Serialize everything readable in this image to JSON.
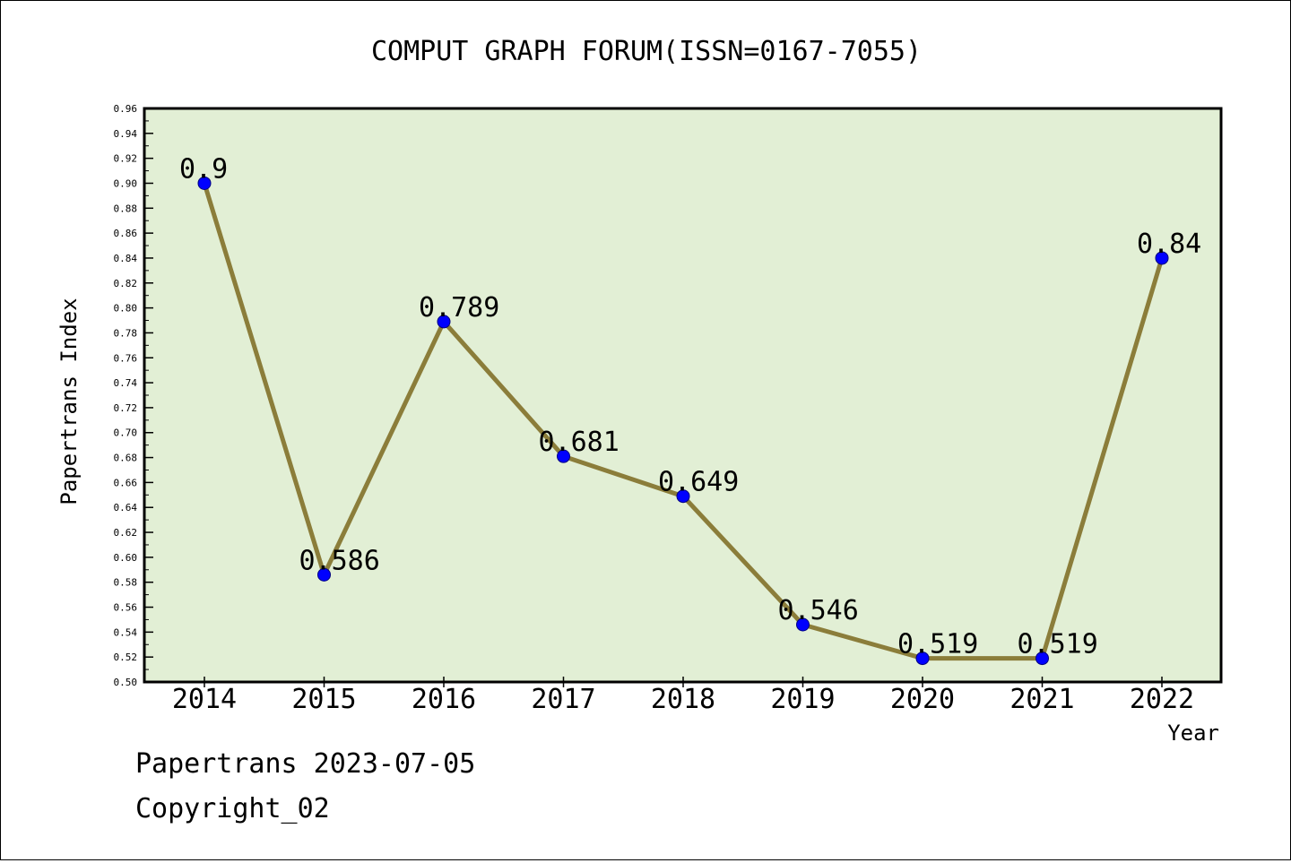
{
  "chart_data": {
    "type": "line",
    "title": "COMPUT GRAPH FORUM(ISSN=0167-7055)",
    "xlabel": "Year",
    "ylabel": "Papertrans Index",
    "categories": [
      "2014",
      "2015",
      "2016",
      "2017",
      "2018",
      "2019",
      "2020",
      "2021",
      "2022"
    ],
    "values": [
      0.9,
      0.586,
      0.789,
      0.681,
      0.649,
      0.546,
      0.519,
      0.519,
      0.84
    ],
    "data_labels": [
      "0.9",
      "0.586",
      "0.789",
      "0.681",
      "0.649",
      "0.546",
      "0.519",
      "0.519",
      "0.84"
    ],
    "ylim": [
      0.5,
      0.96
    ],
    "ytick_step": 0.02,
    "grid": false,
    "colors": {
      "plot_background": "#e2efd5",
      "line": "#8b7d3a",
      "marker": "#0000ff"
    }
  },
  "footer": {
    "date_line": "Papertrans 2023-07-05",
    "copyright": "Copyright_02"
  }
}
